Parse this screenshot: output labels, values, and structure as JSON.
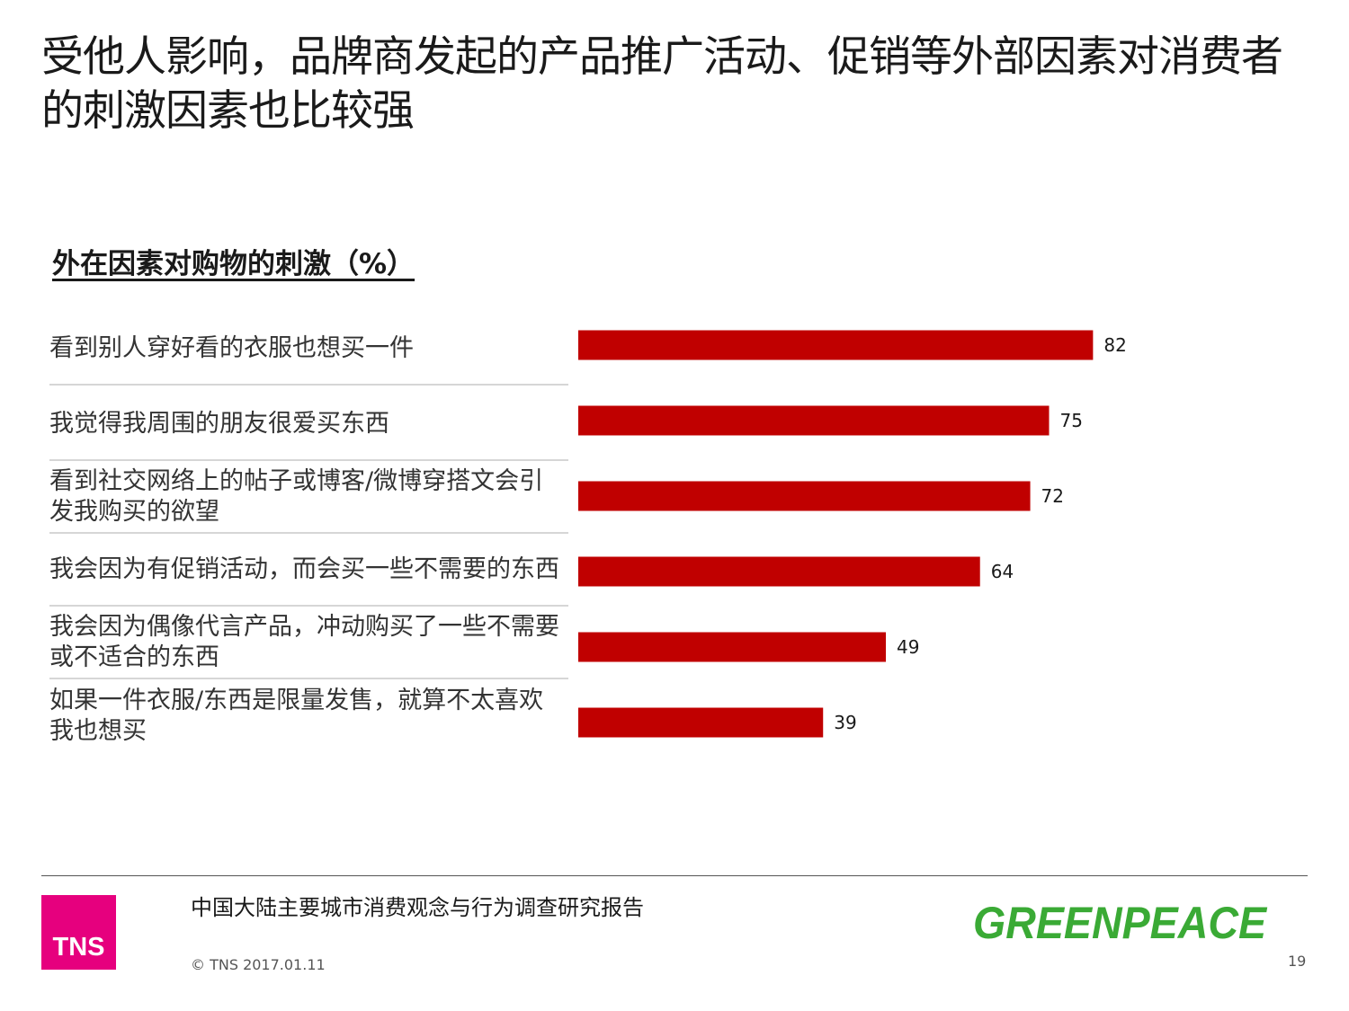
{
  "slide": {
    "title": "受他人影响，品牌商发起的产品推广活动、促销等外部因素对消费者的刺激因素也比较强"
  },
  "chart_data": {
    "type": "bar",
    "orientation": "horizontal",
    "title": "外在因素对购物的刺激（%）",
    "categories": [
      "看到别人穿好看的衣服也想买一件",
      "我觉得我周围的朋友很爱买东西",
      "看到社交网络上的帖子或博客/微博穿搭文会引发我购买的欲望",
      "我会因为有促销活动，而会买一些不需要的东西",
      "我会因为偶像代言产品，冲动购买了一些不需要或不适合的东西",
      "如果一件衣服/东西是限量发售，就算不太喜欢我也想买"
    ],
    "values": [
      82,
      75,
      72,
      64,
      49,
      39
    ],
    "xlim": [
      0,
      100
    ],
    "data_labels": true,
    "grid": false,
    "legend": "none",
    "bar_color": "#c00000"
  },
  "footer": {
    "report_name": "中国大陆主要城市消费观念与行为调查研究报告",
    "copyright": "© TNS 2017.01.11",
    "page_number": "19",
    "tns_logo_text": "TNS",
    "tns_color": "#e6007e",
    "greenpeace_logo_text": "GREENPEACE",
    "greenpeace_color": "#3aaa35"
  }
}
